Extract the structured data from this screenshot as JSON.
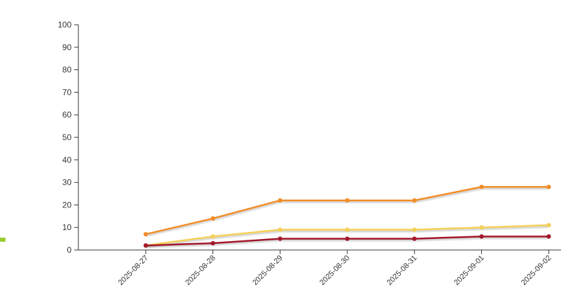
{
  "chart_data": {
    "type": "line",
    "x": [
      "2025-08-27",
      "2025-08-28",
      "2025-08-29",
      "2025-08-30",
      "2025-08-31",
      "2025-09-01",
      "2025-09-02"
    ],
    "y_ticks": [
      "0",
      "10",
      "20",
      "30",
      "40",
      "50",
      "60",
      "70",
      "80",
      "90",
      "100"
    ],
    "ylim": [
      0,
      100
    ],
    "grid": false,
    "series": [
      {
        "color": "#f28c28",
        "values": [
          7,
          14,
          22,
          22,
          22,
          28,
          28
        ]
      },
      {
        "color": "#f5cf57",
        "values": [
          2,
          6,
          9,
          9,
          9,
          10,
          11
        ]
      },
      {
        "color": "#a3182a",
        "values": [
          2,
          3,
          5,
          5,
          5,
          6,
          6
        ]
      }
    ],
    "legend_marker_color": "#9acd32",
    "title": "",
    "xlabel": "",
    "ylabel": ""
  }
}
